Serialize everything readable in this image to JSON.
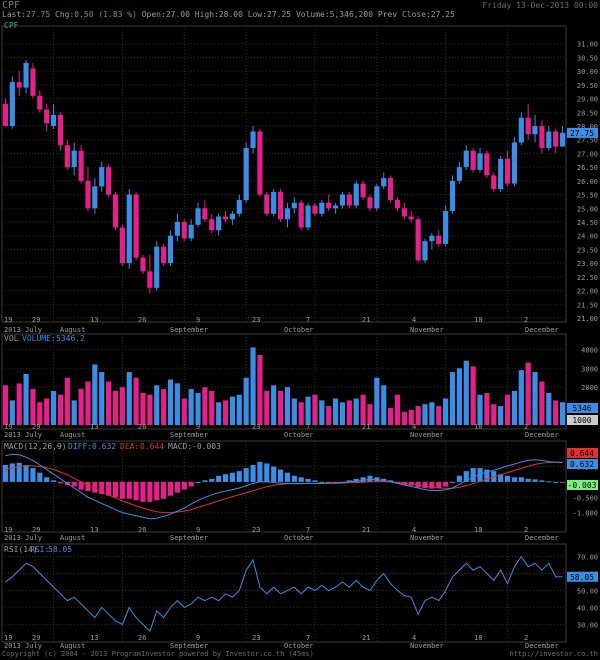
{
  "header": {
    "symbol": "CPF",
    "date": "Friday 13-Dec-2013 00:00",
    "last_label": "Last:",
    "last_value": "27.75",
    "chg_label": "Chg:",
    "chg_value": "0.50 (1.83 %)",
    "open_label": "Open:",
    "open_value": "27.00",
    "high_label": "High:",
    "high_value": "28.00",
    "low_label": "Low:",
    "low_value": "27.25",
    "volume_label": "Volume:",
    "volume_value": "5,346,200",
    "prevclose_label": "Prev Close:",
    "prevclose_value": "27.25"
  },
  "footer": {
    "copyright": "Copyright (c) 2004 - 2013 ProgramInvestor powered by Investor.co.th (45ms)",
    "url": "http://investor.co.th"
  },
  "colors": {
    "up": "#3a8ee6",
    "down": "#e6208a",
    "grid": "#2c2c2c",
    "text": "#9a9a9a",
    "line_blue": "#3a8ee6",
    "line_red": "#e03030"
  },
  "chart_data": [
    {
      "type": "candlestick",
      "title": "CPF",
      "ylim": [
        21,
        31.5
      ],
      "yticks": [
        "31.00",
        "30.50",
        "30.00",
        "29.50",
        "29.00",
        "28.50",
        "28.00",
        "27.50",
        "27.00",
        "26.50",
        "26.00",
        "25.50",
        "25.00",
        "24.50",
        "24.00",
        "23.50",
        "23.00",
        "22.50",
        "22.00",
        "21.50",
        "21.00"
      ],
      "last_label": "27.75",
      "candles": [
        [
          28.8,
          29.0,
          28.0,
          28.0
        ],
        [
          28.0,
          29.8,
          27.9,
          29.6
        ],
        [
          29.6,
          30.0,
          29.1,
          29.4
        ],
        [
          29.4,
          30.4,
          29.2,
          30.3
        ],
        [
          30.1,
          30.3,
          29.0,
          29.1
        ],
        [
          29.1,
          29.3,
          28.5,
          28.6
        ],
        [
          28.6,
          28.8,
          27.8,
          28.1
        ],
        [
          28.0,
          28.8,
          27.9,
          28.4
        ],
        [
          28.4,
          28.5,
          27.1,
          27.3
        ],
        [
          27.3,
          27.5,
          26.4,
          26.5
        ],
        [
          26.5,
          27.4,
          26.2,
          27.1
        ],
        [
          27.1,
          27.3,
          25.9,
          26.0
        ],
        [
          26.0,
          26.5,
          24.9,
          25.0
        ],
        [
          25.0,
          26.1,
          24.8,
          25.8
        ],
        [
          25.8,
          26.7,
          25.6,
          26.5
        ],
        [
          26.5,
          26.6,
          25.4,
          25.5
        ],
        [
          25.5,
          25.6,
          24.2,
          24.3
        ],
        [
          24.3,
          24.4,
          22.9,
          23.0
        ],
        [
          23.0,
          25.7,
          22.8,
          25.5
        ],
        [
          25.5,
          25.6,
          23.1,
          23.2
        ],
        [
          23.2,
          23.3,
          22.6,
          22.7
        ],
        [
          22.7,
          23.3,
          21.9,
          22.1
        ],
        [
          22.1,
          23.8,
          22.0,
          23.6
        ],
        [
          23.6,
          23.7,
          22.9,
          23.0
        ],
        [
          23.0,
          24.2,
          22.9,
          24.0
        ],
        [
          24.0,
          24.8,
          23.8,
          24.5
        ],
        [
          24.5,
          24.6,
          23.8,
          23.9
        ],
        [
          23.9,
          24.6,
          23.8,
          24.4
        ],
        [
          24.4,
          25.2,
          24.3,
          25.0
        ],
        [
          25.0,
          25.3,
          24.5,
          24.6
        ],
        [
          24.6,
          24.8,
          24.1,
          24.2
        ],
        [
          24.2,
          24.8,
          24.0,
          24.7
        ],
        [
          24.7,
          24.9,
          24.5,
          24.6
        ],
        [
          24.6,
          24.9,
          24.4,
          24.8
        ],
        [
          24.8,
          25.5,
          24.7,
          25.3
        ],
        [
          25.3,
          27.4,
          25.2,
          27.2
        ],
        [
          27.2,
          28.0,
          27.0,
          27.8
        ],
        [
          27.8,
          27.9,
          25.4,
          25.5
        ],
        [
          25.5,
          25.6,
          24.7,
          24.8
        ],
        [
          24.8,
          25.7,
          24.7,
          25.6
        ],
        [
          25.6,
          25.7,
          24.5,
          24.6
        ],
        [
          24.6,
          25.2,
          24.3,
          25.0
        ],
        [
          25.0,
          25.4,
          24.8,
          25.2
        ],
        [
          25.2,
          25.3,
          24.2,
          24.3
        ],
        [
          24.3,
          25.2,
          24.2,
          25.1
        ],
        [
          25.1,
          25.2,
          24.7,
          24.8
        ],
        [
          24.8,
          25.3,
          24.7,
          25.2
        ],
        [
          25.2,
          25.5,
          24.9,
          25.0
        ],
        [
          25.0,
          25.2,
          24.8,
          25.1
        ],
        [
          25.1,
          25.6,
          25.0,
          25.5
        ],
        [
          25.5,
          25.6,
          25.0,
          25.1
        ],
        [
          25.1,
          26.0,
          25.0,
          25.9
        ],
        [
          25.9,
          26.0,
          25.3,
          25.4
        ],
        [
          25.4,
          25.5,
          24.9,
          25.0
        ],
        [
          25.0,
          25.9,
          24.9,
          25.8
        ],
        [
          25.8,
          26.3,
          25.7,
          26.1
        ],
        [
          26.1,
          26.2,
          25.2,
          25.3
        ],
        [
          25.3,
          25.4,
          24.9,
          25.0
        ],
        [
          25.0,
          25.2,
          24.6,
          24.7
        ],
        [
          24.7,
          24.9,
          24.5,
          24.6
        ],
        [
          24.6,
          24.7,
          23.0,
          23.1
        ],
        [
          23.1,
          23.9,
          23.0,
          23.8
        ],
        [
          23.8,
          24.1,
          23.5,
          24.0
        ],
        [
          24.0,
          24.2,
          23.6,
          23.7
        ],
        [
          23.7,
          25.1,
          23.6,
          24.9
        ],
        [
          24.9,
          26.2,
          24.8,
          26.0
        ],
        [
          26.0,
          26.7,
          25.9,
          26.5
        ],
        [
          26.5,
          27.3,
          26.4,
          27.1
        ],
        [
          27.1,
          27.2,
          26.3,
          26.4
        ],
        [
          26.4,
          27.2,
          26.3,
          27.0
        ],
        [
          27.0,
          27.1,
          26.1,
          26.2
        ],
        [
          26.2,
          26.3,
          25.6,
          25.7
        ],
        [
          25.7,
          26.9,
          25.6,
          26.8
        ],
        [
          26.8,
          27.1,
          25.8,
          25.9
        ],
        [
          25.9,
          27.6,
          25.8,
          27.4
        ],
        [
          27.4,
          28.5,
          27.3,
          28.3
        ],
        [
          28.3,
          28.8,
          27.5,
          27.7
        ],
        [
          27.7,
          28.4,
          27.4,
          28.0
        ],
        [
          28.0,
          28.2,
          27.0,
          27.2
        ],
        [
          27.2,
          28.0,
          27.1,
          27.8
        ],
        [
          27.8,
          27.9,
          27.0,
          27.25
        ],
        [
          27.25,
          28.0,
          27.25,
          27.75
        ]
      ]
    },
    {
      "type": "bar",
      "title": "VOL",
      "indicator_label": "VOLUME:",
      "indicator_value": "5346.2",
      "ylim": [
        0,
        4600
      ],
      "yticks": [
        "4000",
        "3000",
        "2000",
        "1000"
      ],
      "last_label": "5346",
      "alt_label": "1000",
      "values": [
        2100,
        1300,
        2200,
        2700,
        1900,
        1200,
        1400,
        1800,
        1600,
        2500,
        1300,
        1900,
        2300,
        3200,
        2800,
        2300,
        1800,
        2000,
        2800,
        2500,
        1700,
        1600,
        2100,
        1900,
        2400,
        2200,
        1400,
        1900,
        1700,
        2000,
        1800,
        1200,
        1300,
        1500,
        1600,
        2500,
        4100,
        3700,
        1800,
        2100,
        1800,
        2000,
        1400,
        1200,
        1500,
        1600,
        1300,
        1000,
        1400,
        1200,
        1300,
        1400,
        1600,
        1100,
        2500,
        2100,
        900,
        1600,
        700,
        800,
        1000,
        1100,
        1200,
        1000,
        1400,
        2800,
        3000,
        3400,
        3100,
        1600,
        1700,
        1100,
        1000,
        1600,
        1800,
        2900,
        3300,
        2800,
        2300,
        1700,
        1300,
        1200
      ]
    },
    {
      "type": "bar",
      "title": "MACD(12,26,9)",
      "diff_label": "DIFF:",
      "diff_value": "0.632",
      "dea_label": "DEA:",
      "dea_value": "0.644",
      "macd_label": "MACD:",
      "macd_value": "-0.003",
      "ylim": [
        -1.5,
        1.2
      ],
      "yticks": [
        "0.500",
        "0.000",
        "-0.500",
        "-1.000"
      ],
      "last_labels": [
        "0.644",
        "0.632",
        "-0.003"
      ],
      "values": [
        0.55,
        0.6,
        0.62,
        0.55,
        0.45,
        0.3,
        0.15,
        0.05,
        -0.05,
        -0.1,
        -0.15,
        -0.25,
        -0.3,
        -0.35,
        -0.4,
        -0.45,
        -0.5,
        -0.55,
        -0.55,
        -0.6,
        -0.65,
        -0.65,
        -0.6,
        -0.55,
        -0.45,
        -0.35,
        -0.25,
        -0.15,
        0.0,
        0.05,
        0.1,
        0.2,
        0.25,
        0.3,
        0.35,
        0.45,
        0.55,
        0.65,
        0.6,
        0.5,
        0.4,
        0.3,
        0.2,
        0.15,
        0.1,
        0.05,
        0.0,
        -0.05,
        -0.05,
        0.0,
        0.05,
        0.1,
        0.15,
        0.2,
        0.15,
        0.1,
        0.05,
        -0.05,
        -0.1,
        -0.12,
        -0.18,
        -0.2,
        -0.22,
        -0.2,
        -0.15,
        0.0,
        0.2,
        0.35,
        0.45,
        0.45,
        0.4,
        0.35,
        0.25,
        0.2,
        0.15,
        0.15,
        0.1,
        0.08,
        0.05,
        0.02,
        0.0,
        -0.003
      ],
      "diff": [
        0.85,
        0.9,
        0.88,
        0.8,
        0.7,
        0.55,
        0.4,
        0.25,
        0.1,
        -0.05,
        -0.2,
        -0.35,
        -0.5,
        -0.6,
        -0.7,
        -0.8,
        -0.9,
        -1.0,
        -1.05,
        -1.1,
        -1.15,
        -1.2,
        -1.18,
        -1.12,
        -1.05,
        -0.95,
        -0.85,
        -0.72,
        -0.6,
        -0.5,
        -0.42,
        -0.35,
        -0.3,
        -0.25,
        -0.2,
        -0.12,
        -0.05,
        0.0,
        0.0,
        -0.02,
        -0.04,
        -0.05,
        -0.06,
        -0.06,
        -0.05,
        -0.05,
        -0.05,
        -0.04,
        -0.03,
        -0.02,
        0.0,
        0.02,
        0.05,
        0.08,
        0.07,
        0.05,
        0.0,
        -0.05,
        -0.1,
        -0.15,
        -0.2,
        -0.25,
        -0.28,
        -0.28,
        -0.26,
        -0.2,
        -0.08,
        0.05,
        0.15,
        0.25,
        0.32,
        0.38,
        0.45,
        0.52,
        0.58,
        0.65,
        0.7,
        0.72,
        0.7,
        0.66,
        0.64,
        0.632
      ],
      "dea": [
        0.4,
        0.45,
        0.5,
        0.52,
        0.52,
        0.5,
        0.46,
        0.4,
        0.32,
        0.23,
        0.12,
        0.0,
        -0.12,
        -0.22,
        -0.32,
        -0.42,
        -0.52,
        -0.62,
        -0.7,
        -0.78,
        -0.85,
        -0.92,
        -0.97,
        -1.0,
        -1.0,
        -0.98,
        -0.95,
        -0.9,
        -0.83,
        -0.76,
        -0.69,
        -0.62,
        -0.55,
        -0.48,
        -0.42,
        -0.35,
        -0.29,
        -0.22,
        -0.16,
        -0.11,
        -0.08,
        -0.06,
        -0.05,
        -0.05,
        -0.05,
        -0.05,
        -0.05,
        -0.05,
        -0.05,
        -0.04,
        -0.03,
        -0.02,
        -0.01,
        0.0,
        0.01,
        0.01,
        0.0,
        -0.02,
        -0.05,
        -0.08,
        -0.11,
        -0.14,
        -0.17,
        -0.2,
        -0.21,
        -0.21,
        -0.18,
        -0.12,
        -0.06,
        0.02,
        0.09,
        0.16,
        0.23,
        0.3,
        0.37,
        0.44,
        0.51,
        0.57,
        0.61,
        0.63,
        0.64,
        0.644
      ]
    },
    {
      "type": "line",
      "title": "RSI(14)",
      "indicator_label": "RSI:",
      "indicator_value": "58.05",
      "ylim": [
        22,
        75
      ],
      "yticks": [
        "70.00",
        "60.00",
        "50.00",
        "40.00",
        "30.00"
      ],
      "last_label": "58.05",
      "values": [
        55,
        58,
        62,
        66,
        64,
        60,
        56,
        52,
        48,
        44,
        46,
        42,
        38,
        34,
        40,
        36,
        32,
        30,
        40,
        34,
        30,
        26,
        38,
        34,
        40,
        44,
        40,
        42,
        46,
        44,
        46,
        44,
        48,
        46,
        50,
        62,
        68,
        52,
        48,
        52,
        48,
        50,
        52,
        48,
        52,
        50,
        53,
        50,
        52,
        55,
        52,
        56,
        52,
        50,
        56,
        60,
        54,
        50,
        47,
        46,
        36,
        44,
        46,
        44,
        50,
        58,
        62,
        66,
        62,
        64,
        60,
        56,
        62,
        54,
        64,
        70,
        64,
        66,
        62,
        66,
        58,
        58.05
      ]
    }
  ],
  "x_axis": {
    "top_labels": [
      "19",
      "29",
      "13",
      "26",
      "9",
      "23",
      "7",
      "21",
      "4",
      "18",
      "2"
    ],
    "month_labels": [
      "2013 July",
      "August",
      "September",
      "October",
      "November",
      "December"
    ]
  }
}
